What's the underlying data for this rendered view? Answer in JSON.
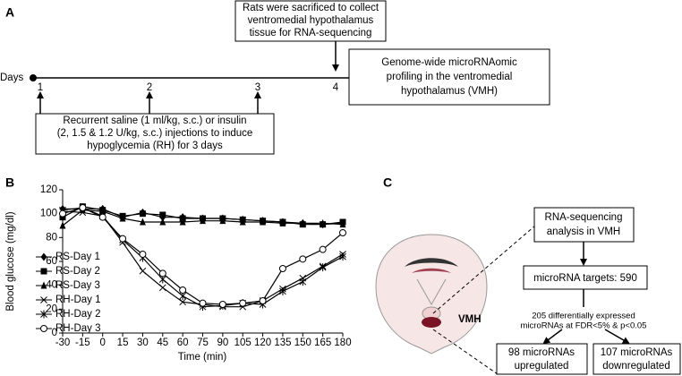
{
  "panel_a": {
    "label": "A",
    "axis_label": "Days",
    "days": [
      "1",
      "2",
      "3",
      "4"
    ],
    "top_box": [
      "Rats were sacrificed to collect",
      "ventromedial hypothalamus",
      "tissue for RNA-sequencing"
    ],
    "right_box": [
      "Genome-wide microRNAomic",
      "profiling in the ventromedial",
      "hypothalamus (VMH)"
    ],
    "bottom_box": [
      "Recurrent saline (1 ml/kg, s.c.) or insulin",
      "(2, 1.5 & 1.2 U/kg, s.c.) injections to induce",
      "hypoglycemia (RH) for 3 days"
    ]
  },
  "chart_data": {
    "type": "line",
    "panel_label": "B",
    "x_label": "Time (min)",
    "y_label": "Blood glucose (mg/dl)",
    "x": [
      -30,
      -15,
      0,
      15,
      30,
      45,
      60,
      75,
      90,
      105,
      120,
      135,
      150,
      165,
      180
    ],
    "xlim": [
      -30,
      180
    ],
    "xticks": [
      -30,
      -15,
      0,
      15,
      30,
      45,
      60,
      75,
      90,
      105,
      120,
      135,
      150,
      165,
      180
    ],
    "ylim": [
      0,
      120
    ],
    "yticks": [
      0,
      20,
      40,
      60,
      80,
      100,
      120
    ],
    "legend": "lower left",
    "series": [
      {
        "name": "RS-Day 1",
        "color": "#000000",
        "marker": "diamond",
        "values": [
          104,
          104,
          104,
          97,
          101,
          97,
          97,
          96,
          96,
          95,
          94,
          93,
          92,
          91,
          92
        ]
      },
      {
        "name": "RS-Day 2",
        "color": "#000000",
        "marker": "square",
        "values": [
          97,
          106,
          103,
          98,
          100,
          99,
          96,
          96,
          96,
          95,
          94,
          93,
          91,
          91,
          93
        ]
      },
      {
        "name": "RS-Day 3",
        "color": "#000000",
        "marker": "triangle",
        "values": [
          90,
          103,
          102,
          96,
          93,
          93,
          93,
          94,
          94,
          93,
          93,
          92,
          92,
          92,
          91
        ]
      },
      {
        "name": "RH-Day 1",
        "color": "#000000",
        "marker": "x",
        "values": [
          102,
          101,
          98,
          76,
          52,
          38,
          26,
          24,
          22,
          22,
          27,
          37,
          46,
          56,
          66
        ]
      },
      {
        "name": "RH-Day 2",
        "color": "#000000",
        "marker": "star",
        "values": [
          103,
          105,
          98,
          78,
          63,
          45,
          31,
          22,
          23,
          25,
          24,
          35,
          43,
          55,
          64
        ]
      },
      {
        "name": "RH-Day 3",
        "color": "#000000",
        "marker": "circle",
        "values": [
          100,
          105,
          97,
          79,
          66,
          50,
          36,
          25,
          24,
          25,
          27,
          54,
          62,
          70,
          84
        ]
      }
    ]
  },
  "panel_c": {
    "label": "C",
    "region_label": "VMH",
    "sequencing_box": [
      "RNA-sequencing",
      "analysis in VMH"
    ],
    "targets_box": "microRNA targets: 590",
    "filter_note": [
      "205 differentially expressed",
      "microRNAs at FDR<5% & p<0.05"
    ],
    "up_box": [
      "98 microRNAs",
      "upregulated"
    ],
    "down_box": [
      "107 microRNAs",
      "downregulated"
    ]
  }
}
